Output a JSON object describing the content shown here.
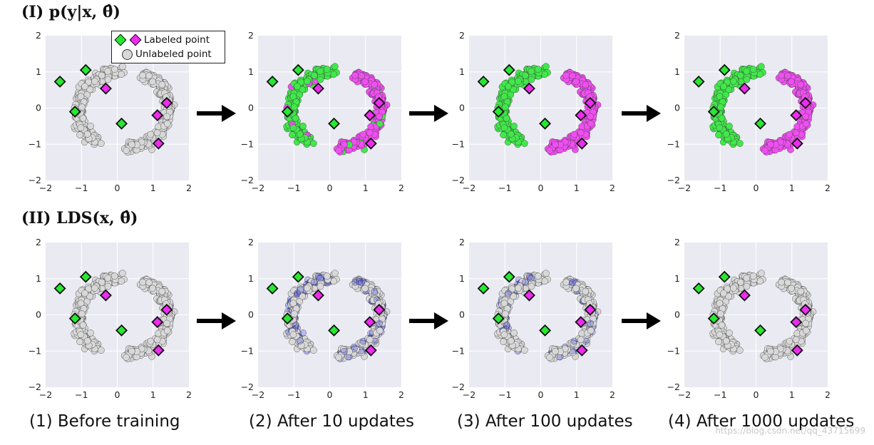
{
  "row_titles": [
    "(I) p(y|x, θ̂)",
    "(II) LDS(x, θ̂)"
  ],
  "captions": [
    "(1) Before training",
    "(2) After 10 updates",
    "(3) After 100 updates",
    "(4) After 1000 updates"
  ],
  "watermark": "https://blog.csdn.net/qq_43715699",
  "legend": {
    "labeled": "Labeled point",
    "unlabeled": "Unlabeled point",
    "position": "top-right"
  },
  "colors": {
    "class_green": "#41e84a",
    "class_magenta": "#ef4ff0",
    "labeled_green": "#27e831",
    "labeled_magenta": "#ef2bf0",
    "unlabeled": "#d8d8d8",
    "lds_blue": "#1a22e8",
    "axes_bg": "#eaeaf2",
    "grid": "#ffffff"
  },
  "chart_data": [
    {
      "type": "scatter",
      "row": "I",
      "stage": 1,
      "xlim": [
        -2,
        2
      ],
      "ylim": [
        -2,
        2
      ],
      "xticks": [
        "−2",
        "−1",
        "0",
        "1",
        "2"
      ],
      "yticks": [
        "2",
        "1",
        "0",
        "−1",
        "−2"
      ],
      "grid": true,
      "coloring": "unlabeled",
      "legend": true
    },
    {
      "type": "scatter",
      "row": "I",
      "stage": 2,
      "xlim": [
        -2,
        2
      ],
      "ylim": [
        -2,
        2
      ],
      "xticks": [
        "−2",
        "−1",
        "0",
        "1",
        "2"
      ],
      "yticks": [
        "2",
        "1",
        "0",
        "−1",
        "−2"
      ],
      "grid": true,
      "coloring": "class",
      "boundary": "rough"
    },
    {
      "type": "scatter",
      "row": "I",
      "stage": 3,
      "xlim": [
        -2,
        2
      ],
      "ylim": [
        -2,
        2
      ],
      "xticks": [
        "−2",
        "−1",
        "0",
        "1",
        "2"
      ],
      "yticks": [
        "2",
        "1",
        "0",
        "−1",
        "−2"
      ],
      "grid": true,
      "coloring": "class",
      "boundary": "moons"
    },
    {
      "type": "scatter",
      "row": "I",
      "stage": 4,
      "xlim": [
        -2,
        2
      ],
      "ylim": [
        -2,
        2
      ],
      "xticks": [
        "−2",
        "−1",
        "0",
        "1",
        "2"
      ],
      "yticks": [
        "2",
        "1",
        "0",
        "−1",
        "−2"
      ],
      "grid": true,
      "coloring": "class",
      "boundary": "moons"
    },
    {
      "type": "scatter",
      "row": "II",
      "stage": 1,
      "xlim": [
        -2,
        2
      ],
      "ylim": [
        -2,
        2
      ],
      "xticks": [
        "−2",
        "−1",
        "0",
        "1",
        "2"
      ],
      "yticks": [
        "2",
        "1",
        "0",
        "−1",
        "−2"
      ],
      "grid": true,
      "coloring": "lds",
      "lds_level": 0
    },
    {
      "type": "scatter",
      "row": "II",
      "stage": 2,
      "xlim": [
        -2,
        2
      ],
      "ylim": [
        -2,
        2
      ],
      "xticks": [
        "−2",
        "−1",
        "0",
        "1",
        "2"
      ],
      "yticks": [
        "2",
        "1",
        "0",
        "−1",
        "−2"
      ],
      "grid": true,
      "coloring": "lds",
      "lds_level": 1
    },
    {
      "type": "scatter",
      "row": "II",
      "stage": 3,
      "xlim": [
        -2,
        2
      ],
      "ylim": [
        -2,
        2
      ],
      "xticks": [
        "−2",
        "−1",
        "0",
        "1",
        "2"
      ],
      "yticks": [
        "2",
        "1",
        "0",
        "−1",
        "−2"
      ],
      "grid": true,
      "coloring": "lds",
      "lds_level": 0.7
    },
    {
      "type": "scatter",
      "row": "II",
      "stage": 4,
      "xlim": [
        -2,
        2
      ],
      "ylim": [
        -2,
        2
      ],
      "xticks": [
        "−2",
        "−1",
        "0",
        "1",
        "2"
      ],
      "yticks": [
        "2",
        "1",
        "0",
        "−1",
        "−2"
      ],
      "grid": true,
      "coloring": "lds",
      "lds_level": 0.35
    }
  ],
  "labeled_points": [
    {
      "x": -1.6,
      "y": 0.73,
      "class": "green"
    },
    {
      "x": -0.88,
      "y": 1.05,
      "class": "green"
    },
    {
      "x": -1.18,
      "y": -0.1,
      "class": "green"
    },
    {
      "x": 0.12,
      "y": -0.43,
      "class": "green"
    },
    {
      "x": -0.32,
      "y": 0.54,
      "class": "magenta"
    },
    {
      "x": 1.38,
      "y": 0.14,
      "class": "magenta"
    },
    {
      "x": 1.12,
      "y": -0.2,
      "class": "magenta"
    },
    {
      "x": 1.15,
      "y": -0.98,
      "class": "magenta"
    }
  ],
  "unlabeled_point_count": 520
}
